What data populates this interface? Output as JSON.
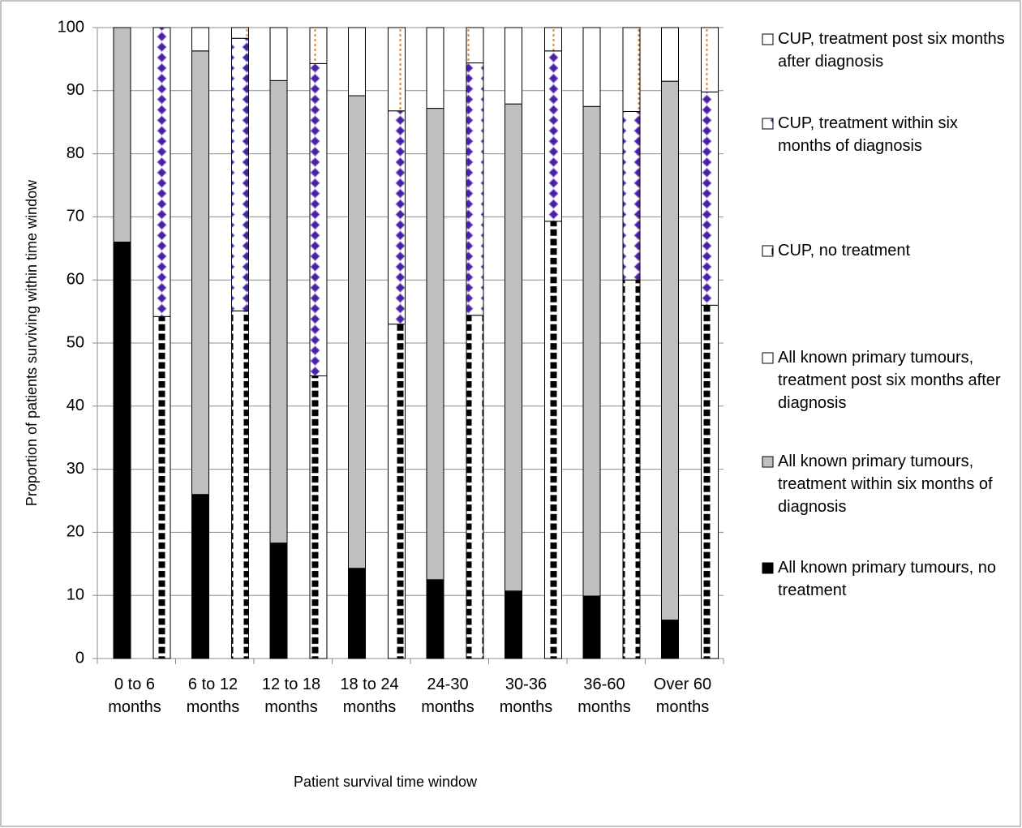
{
  "chart_data": {
    "type": "stacked-bar",
    "y_label": "Proportion of patients surviving within time window",
    "x_label": "Patient survival time window",
    "categories": [
      "0 to 6 months",
      "6 to 12 months",
      "12 to 18 months",
      "18 to 24 months",
      "24-30 months",
      "30-36 months",
      "36-60 months",
      "Over 60 months"
    ],
    "ylim": [
      0,
      100
    ],
    "yticks": [
      0,
      10,
      20,
      30,
      40,
      50,
      60,
      70,
      80,
      90,
      100
    ],
    "grid": true,
    "legend": "right",
    "series": [
      {
        "name": "CUP, treatment post six months after diagnosis",
        "stack": "right",
        "pattern": "dotted-line",
        "color": "#d08a4a",
        "values": [
          0,
          1.7,
          5.7,
          13.2,
          5.6,
          3.7,
          13.3,
          10.2
        ]
      },
      {
        "name": "CUP, treatment within six months of diagnosis",
        "stack": "right",
        "pattern": "diamonds",
        "color": "#4b1fa6",
        "values": [
          45.8,
          43.2,
          49.5,
          33.8,
          40,
          27,
          26.7,
          33.8
        ]
      },
      {
        "name": "CUP, no treatment",
        "stack": "right",
        "pattern": "squares",
        "color": "#000000",
        "values": [
          54.2,
          55.1,
          44.8,
          53,
          54.4,
          69.3,
          60,
          56
        ]
      },
      {
        "name": "All known primary tumours, treatment post six months after diagnosis",
        "stack": "left",
        "pattern": "solid",
        "color": "#ffffff",
        "values": [
          0,
          3.7,
          8.4,
          10.8,
          12.8,
          12.1,
          12.5,
          8.5
        ]
      },
      {
        "name": "All known primary tumours, treatment within six months of diagnosis",
        "stack": "left",
        "pattern": "solid",
        "color": "#bfbfbf",
        "values": [
          34,
          70.3,
          73.3,
          74.9,
          74.7,
          77.2,
          77.6,
          85.4
        ]
      },
      {
        "name": "All known primary tumours, no treatment",
        "stack": "left",
        "pattern": "solid",
        "color": "#000000",
        "values": [
          66,
          26,
          18.3,
          14.3,
          12.5,
          10.7,
          9.9,
          6.1
        ]
      }
    ]
  }
}
